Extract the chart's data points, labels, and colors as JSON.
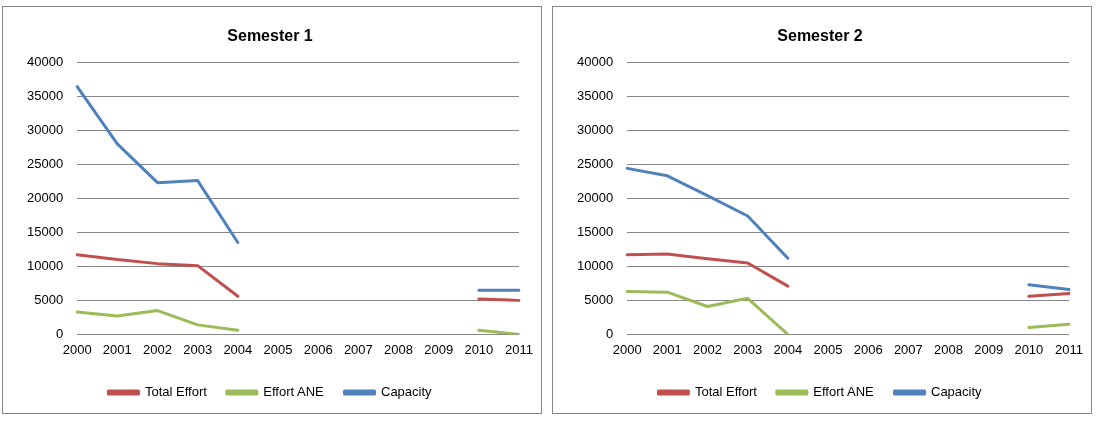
{
  "chart_data": [
    {
      "type": "line",
      "title": "Semester 1",
      "categories": [
        "2000",
        "2001",
        "2002",
        "2003",
        "2004",
        "2005",
        "2006",
        "2007",
        "2008",
        "2009",
        "2010",
        "2011"
      ],
      "ylim": [
        0,
        40000
      ],
      "yticks": [
        0,
        5000,
        10000,
        15000,
        20000,
        25000,
        30000,
        35000,
        40000
      ],
      "grid": "y",
      "legend": "bottom",
      "marker": "none",
      "series": [
        {
          "name": "Total Effort",
          "color": "#c0504d",
          "values": [
            11700,
            11000,
            10400,
            10100,
            5600,
            null,
            null,
            null,
            null,
            null,
            5200,
            5000
          ]
        },
        {
          "name": "Effort ANE",
          "color": "#9bbb59",
          "values": [
            3300,
            2700,
            3500,
            1400,
            600,
            null,
            null,
            null,
            null,
            null,
            600,
            0
          ]
        },
        {
          "name": "Capacity",
          "color": "#4f81bd",
          "values": [
            36400,
            28000,
            22300,
            22600,
            13500,
            null,
            null,
            null,
            null,
            null,
            6500,
            6500
          ]
        }
      ]
    },
    {
      "type": "line",
      "title": "Semester 2",
      "categories": [
        "2000",
        "2001",
        "2002",
        "2003",
        "2004",
        "2005",
        "2006",
        "2007",
        "2008",
        "2009",
        "2010",
        "2011"
      ],
      "ylim": [
        0,
        40000
      ],
      "yticks": [
        0,
        5000,
        10000,
        15000,
        20000,
        25000,
        30000,
        35000,
        40000
      ],
      "grid": "y",
      "legend": "bottom",
      "marker": "none",
      "series": [
        {
          "name": "Total Effort",
          "color": "#c0504d",
          "values": [
            11700,
            11800,
            11100,
            10500,
            7100,
            null,
            null,
            null,
            null,
            null,
            5600,
            6000
          ]
        },
        {
          "name": "Effort ANE",
          "color": "#9bbb59",
          "values": [
            6300,
            6200,
            4100,
            5300,
            0,
            null,
            null,
            null,
            null,
            null,
            1000,
            1500
          ]
        },
        {
          "name": "Capacity",
          "color": "#4f81bd",
          "values": [
            24400,
            23300,
            20400,
            17400,
            11200,
            null,
            null,
            null,
            null,
            null,
            7300,
            6600
          ]
        }
      ]
    }
  ]
}
